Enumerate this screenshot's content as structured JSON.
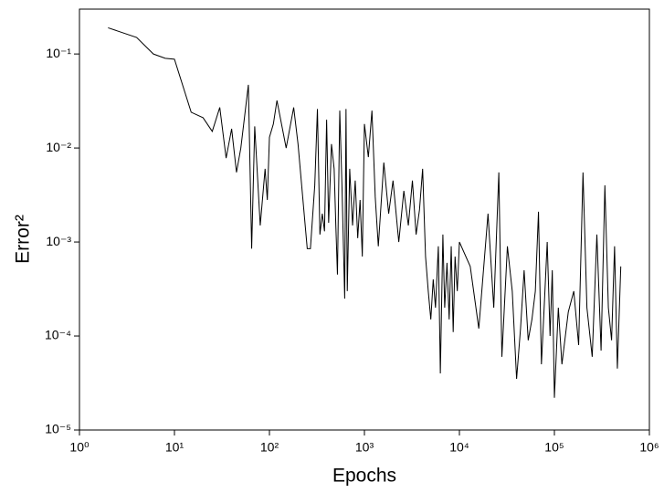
{
  "chart_data": {
    "type": "line",
    "xlabel": "Epochs",
    "ylabel": "Error²",
    "xscale": "log",
    "yscale": "log",
    "color": "#000000",
    "xlim": [
      1,
      1000000
    ],
    "xticks": [
      {
        "value": 1,
        "label": "10⁰"
      },
      {
        "value": 10,
        "label": "10¹"
      },
      {
        "value": 100,
        "label": "10²"
      },
      {
        "value": 1000,
        "label": "10³"
      },
      {
        "value": 10000,
        "label": "10⁴"
      },
      {
        "value": 100000,
        "label": "10⁵"
      },
      {
        "value": 1000000,
        "label": "10⁶"
      }
    ],
    "ylim": [
      1e-05,
      0.3
    ],
    "yticks": [
      {
        "value": 1e-05,
        "label": "10⁻⁵"
      },
      {
        "value": 0.0001,
        "label": "10⁻⁴"
      },
      {
        "value": 0.001,
        "label": "10⁻³"
      },
      {
        "value": 0.01,
        "label": "10⁻²"
      },
      {
        "value": 0.1,
        "label": "10⁻¹"
      }
    ],
    "x": [
      2,
      4,
      6,
      8,
      10,
      15,
      20,
      25,
      30,
      35,
      40,
      45,
      50,
      60,
      65,
      70,
      80,
      90,
      95,
      100,
      110,
      120,
      150,
      180,
      200,
      250,
      270,
      300,
      320,
      340,
      360,
      380,
      400,
      420,
      450,
      480,
      500,
      520,
      550,
      580,
      620,
      640,
      660,
      700,
      750,
      800,
      850,
      900,
      950,
      1000,
      1100,
      1200,
      1300,
      1400,
      1600,
      1800,
      2000,
      2300,
      2600,
      2900,
      3200,
      3500,
      3800,
      4100,
      4400,
      4700,
      5000,
      5300,
      5600,
      6000,
      6300,
      6700,
      7000,
      7400,
      7800,
      8200,
      8600,
      9000,
      9500,
      10000,
      13000,
      16000,
      20000,
      23000,
      26000,
      28000,
      32000,
      36000,
      40000,
      44000,
      48000,
      53000,
      58000,
      63000,
      68000,
      73000,
      78000,
      84000,
      90000,
      95000,
      100000,
      110000,
      120000,
      140000,
      160000,
      180000,
      200000,
      220000,
      250000,
      280000,
      310000,
      340000,
      370000,
      400000,
      430000,
      460000,
      500000
    ],
    "values": [
      0.19,
      0.15,
      0.1,
      0.09,
      0.088,
      0.024,
      0.021,
      0.015,
      0.027,
      0.0078,
      0.016,
      0.0055,
      0.01,
      0.047,
      0.00085,
      0.017,
      0.0015,
      0.006,
      0.0028,
      0.013,
      0.018,
      0.032,
      0.01,
      0.027,
      0.011,
      0.00085,
      0.00085,
      0.004,
      0.026,
      0.0012,
      0.002,
      0.0013,
      0.02,
      0.0016,
      0.011,
      0.006,
      0.0015,
      0.00045,
      0.025,
      0.004,
      0.00025,
      0.026,
      0.0003,
      0.006,
      0.0015,
      0.0045,
      0.0011,
      0.0028,
      0.0007,
      0.018,
      0.008,
      0.025,
      0.003,
      0.0009,
      0.007,
      0.002,
      0.0045,
      0.001,
      0.0035,
      0.0015,
      0.0045,
      0.0012,
      0.0022,
      0.006,
      0.0007,
      0.0003,
      0.00015,
      0.0004,
      0.0002,
      0.0009,
      4e-05,
      0.0012,
      0.0002,
      0.0006,
      0.00015,
      0.0009,
      0.00011,
      0.0007,
      0.0003,
      0.001,
      0.00055,
      0.00012,
      0.002,
      0.0002,
      0.0055,
      6e-05,
      0.0009,
      0.0003,
      3.5e-05,
      0.00012,
      0.0005,
      9e-05,
      0.00015,
      0.0003,
      0.0021,
      5e-05,
      0.0002,
      0.001,
      0.0001,
      0.0005,
      2.2e-05,
      0.0002,
      5e-05,
      0.00018,
      0.0003,
      8e-05,
      0.0055,
      0.0002,
      6e-05,
      0.0012,
      7e-05,
      0.004,
      0.0002,
      9e-05,
      0.0009,
      4.5e-05,
      0.00055
    ]
  }
}
